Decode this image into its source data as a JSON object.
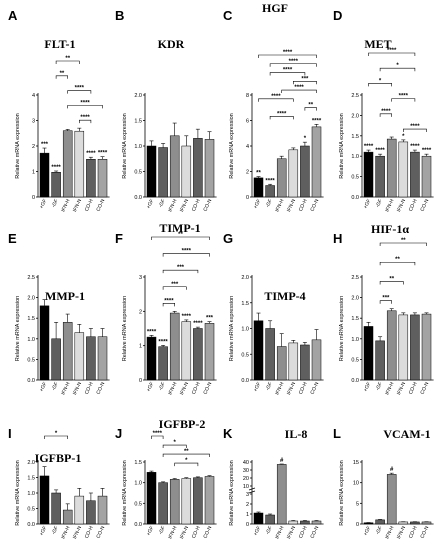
{
  "chart_data": [
    {
      "panel": "A",
      "type": "bar",
      "title": "FLT-1",
      "ylabel": "Relative mRNA expression",
      "ylim": [
        0,
        4
      ],
      "yticks": [
        "0",
        "1",
        "2",
        "3",
        "4"
      ],
      "categories": [
        "+GF",
        "-GF",
        "IFN-H",
        "IFN-N",
        "CO-H",
        "CO-N"
      ],
      "values": [
        1.72,
        0.97,
        2.6,
        2.58,
        1.48,
        1.48
      ],
      "errors": [
        0.2,
        0.05,
        0.05,
        0.12,
        0.08,
        0.1
      ],
      "labels_above": [
        "***",
        "****",
        "",
        "",
        "****",
        "****"
      ],
      "brackets": [
        {
          "from": 1,
          "to": 3,
          "label": "**"
        },
        {
          "from": 1,
          "to": 2,
          "label": "**"
        },
        {
          "from": 2,
          "to": 4,
          "label": "****"
        },
        {
          "from": 2,
          "to": 5,
          "label": "****"
        },
        {
          "from": 3,
          "to": 4,
          "label": "****"
        }
      ]
    },
    {
      "panel": "B",
      "type": "bar",
      "title": "KDR",
      "ylabel": "Relative mRNA expression",
      "ylim": [
        0,
        2.0
      ],
      "yticks": [
        "0.0",
        "0.5",
        "1.0",
        "1.5",
        "2.0"
      ],
      "categories": [
        "+GF",
        "-GF",
        "IFN-H",
        "IFN-N",
        "CO-H",
        "CO-N"
      ],
      "values": [
        1.0,
        0.97,
        1.2,
        1.0,
        1.15,
        1.13
      ],
      "errors": [
        0.1,
        0.08,
        0.25,
        0.2,
        0.18,
        0.15
      ],
      "labels_above": [
        "",
        "",
        "",
        "",
        "",
        ""
      ],
      "brackets": []
    },
    {
      "panel": "C",
      "type": "bar",
      "title": "HGF",
      "ylabel": "Relative mRNA expression",
      "ylim": [
        0,
        8
      ],
      "yticks": [
        "0",
        "2",
        "4",
        "6",
        "8"
      ],
      "categories": [
        "+GF",
        "-GF",
        "IFN-H",
        "IFN-N",
        "CO-H",
        "CO-N"
      ],
      "values": [
        1.5,
        0.9,
        3.0,
        3.7,
        4.0,
        5.5
      ],
      "errors": [
        0.1,
        0.1,
        0.2,
        0.15,
        0.3,
        0.2
      ],
      "labels_above": [
        "**",
        "****",
        "",
        "",
        "*",
        "****"
      ],
      "brackets": [
        {
          "from": 0,
          "to": 5,
          "label": "****"
        },
        {
          "from": 1,
          "to": 5,
          "label": "****"
        },
        {
          "from": 1,
          "to": 4,
          "label": "****"
        },
        {
          "from": 3,
          "to": 5,
          "label": "***"
        },
        {
          "from": 2,
          "to": 5,
          "label": "****"
        },
        {
          "from": 0,
          "to": 3,
          "label": "****"
        },
        {
          "from": 4,
          "to": 5,
          "label": "**"
        },
        {
          "from": 1,
          "to": 3,
          "label": "****"
        }
      ]
    },
    {
      "panel": "D",
      "type": "bar",
      "title": "MET",
      "ylabel": "Relative mRNA expression",
      "ylim": [
        0,
        2.5
      ],
      "yticks": [
        "0.0",
        "0.5",
        "1.0",
        "1.5",
        "2.0",
        "2.5"
      ],
      "categories": [
        "+GF",
        "-GF",
        "IFN-H",
        "IFN-N",
        "CO-H",
        "CO-N"
      ],
      "values": [
        1.1,
        1.0,
        1.42,
        1.35,
        1.1,
        1.0
      ],
      "errors": [
        0.05,
        0.05,
        0.05,
        0.05,
        0.05,
        0.05
      ],
      "labels_above": [
        "****",
        "****",
        "",
        "*",
        "****",
        "****"
      ],
      "brackets": [
        {
          "from": 0,
          "to": 4,
          "label": "****"
        },
        {
          "from": 1,
          "to": 4,
          "label": "*"
        },
        {
          "from": 0,
          "to": 2,
          "label": "*"
        },
        {
          "from": 2,
          "to": 4,
          "label": "****"
        },
        {
          "from": 1,
          "to": 2,
          "label": "****"
        },
        {
          "from": 3,
          "to": 5,
          "label": "****"
        }
      ]
    },
    {
      "panel": "E",
      "type": "bar",
      "title": "MMP-1",
      "ylabel": "Relative mRNA expression",
      "ylim": [
        0,
        2.5
      ],
      "yticks": [
        "0.0",
        "0.5",
        "1.0",
        "1.5",
        "2.0",
        "2.5"
      ],
      "categories": [
        "+GF",
        "-GF",
        "IFN-H",
        "IFN-N",
        "CO-H",
        "CO-N"
      ],
      "values": [
        1.8,
        1.0,
        1.4,
        1.15,
        1.05,
        1.05
      ],
      "errors": [
        0.15,
        0.4,
        0.2,
        0.2,
        0.2,
        0.2
      ],
      "labels_above": [
        "",
        "",
        "",
        "",
        "",
        ""
      ],
      "brackets": []
    },
    {
      "panel": "F",
      "type": "bar",
      "title": "TIMP-1",
      "ylabel": "Relative mRNA expression",
      "ylim": [
        0,
        3
      ],
      "yticks": [
        "0",
        "1",
        "2",
        "3"
      ],
      "categories": [
        "+GF",
        "-GF",
        "IFN-H",
        "IFN-N",
        "CO-H",
        "CO-N"
      ],
      "values": [
        1.25,
        0.97,
        1.95,
        1.7,
        1.5,
        1.65
      ],
      "errors": [
        0.05,
        0.04,
        0.05,
        0.05,
        0.04,
        0.05
      ],
      "labels_above": [
        "****",
        "****",
        "",
        "****",
        "****",
        "***"
      ],
      "brackets": [
        {
          "from": 0,
          "to": 5,
          "label": "**"
        },
        {
          "from": 1,
          "to": 5,
          "label": "****"
        },
        {
          "from": 1,
          "to": 4,
          "label": "***"
        },
        {
          "from": 1,
          "to": 3,
          "label": "***"
        },
        {
          "from": 1,
          "to": 2,
          "label": "****"
        }
      ]
    },
    {
      "panel": "G",
      "type": "bar",
      "title": "TIMP-4",
      "ylabel": "Relative mRNA expression",
      "ylim": [
        0,
        2.0
      ],
      "yticks": [
        "0.0",
        "0.5",
        "1.0",
        "1.5",
        "2.0"
      ],
      "categories": [
        "+GF",
        "-GF",
        "IFN-H",
        "IFN-N",
        "CO-H",
        "CO-N"
      ],
      "values": [
        1.15,
        1.0,
        0.65,
        0.72,
        0.68,
        0.78
      ],
      "errors": [
        0.15,
        0.15,
        0.25,
        0.05,
        0.05,
        0.2
      ],
      "labels_above": [
        "",
        "",
        "",
        "",
        "",
        ""
      ],
      "brackets": []
    },
    {
      "panel": "H",
      "type": "bar",
      "title": "HIF-1α",
      "ylabel": "Relative mRNA expression",
      "ylim": [
        0,
        2.5
      ],
      "yticks": [
        "0.0",
        "0.5",
        "1.0",
        "1.5",
        "2.0",
        "2.5"
      ],
      "categories": [
        "+GF",
        "-GF",
        "IFN-H",
        "IFN-N",
        "CO-H",
        "CO-N"
      ],
      "values": [
        1.3,
        0.95,
        1.68,
        1.58,
        1.58,
        1.6
      ],
      "errors": [
        0.1,
        0.1,
        0.05,
        0.05,
        0.05,
        0.03
      ],
      "labels_above": [
        "",
        "",
        "",
        "",
        "",
        ""
      ],
      "brackets": [
        {
          "from": 1,
          "to": 5,
          "label": "**"
        },
        {
          "from": 1,
          "to": 4,
          "label": "**"
        },
        {
          "from": 1,
          "to": 3,
          "label": "**"
        },
        {
          "from": 1,
          "to": 2,
          "label": "***"
        }
      ]
    },
    {
      "panel": "I",
      "type": "bar",
      "title": "IGFBP-1",
      "ylabel": "Relative mRNA expression",
      "ylim": [
        0,
        2.0
      ],
      "yticks": [
        "0.0",
        "0.5",
        "1.0",
        "1.5",
        "2.0"
      ],
      "categories": [
        "+GF",
        "-GF",
        "IFN-H",
        "IFN-N",
        "CO-H",
        "CO-N"
      ],
      "values": [
        1.55,
        1.0,
        0.45,
        0.9,
        0.75,
        0.9
      ],
      "errors": [
        0.3,
        0.1,
        0.2,
        0.25,
        0.25,
        0.25
      ],
      "labels_above": [
        "",
        "",
        "",
        "",
        "",
        ""
      ],
      "brackets": [
        {
          "from": 0,
          "to": 2,
          "label": "*"
        }
      ]
    },
    {
      "panel": "J",
      "type": "bar",
      "title": "IGFBP-2",
      "ylabel": "Relative mRNA expression",
      "ylim": [
        0,
        1.5
      ],
      "yticks": [
        "0.0",
        "0.5",
        "1.0",
        "1.5"
      ],
      "categories": [
        "+GF",
        "-GF",
        "IFN-H",
        "IFN-N",
        "CO-H",
        "CO-N"
      ],
      "values": [
        1.25,
        1.0,
        1.08,
        1.1,
        1.12,
        1.15
      ],
      "errors": [
        0.03,
        0.02,
        0.02,
        0.02,
        0.02,
        0.02
      ],
      "labels_above": [
        "",
        "",
        "",
        "",
        "",
        ""
      ],
      "brackets": [
        {
          "from": 0,
          "to": 1,
          "label": "****"
        },
        {
          "from": 1,
          "to": 3,
          "label": "*"
        },
        {
          "from": 1,
          "to": 5,
          "label": "**"
        },
        {
          "from": 2,
          "to": 4,
          "label": "*"
        }
      ]
    },
    {
      "panel": "K",
      "type": "bar",
      "title": "IL-8",
      "ylabel": "Relative mRNA expression",
      "broken_axis": true,
      "ylim": [
        0,
        40
      ],
      "yticks": [
        "0",
        "1",
        "2",
        "3",
        "10",
        "20",
        "30",
        "40"
      ],
      "categories": [
        "+GF",
        "-GF",
        "IFN-H",
        "IFN-N",
        "CO-H",
        "CO-N"
      ],
      "values": [
        1.1,
        0.9,
        37,
        0.3,
        0.3,
        0.3
      ],
      "errors": [
        0.1,
        0.1,
        0.5,
        0.05,
        0.05,
        0.05
      ],
      "labels_above": [
        "",
        "",
        "#",
        "",
        "",
        ""
      ],
      "brackets": []
    },
    {
      "panel": "L",
      "type": "bar",
      "title": "VCAM-1",
      "ylabel": "Relative mRNA expression",
      "ylim": [
        0,
        15
      ],
      "yticks": [
        "0",
        "5",
        "10",
        "15"
      ],
      "categories": [
        "+GF",
        "-GF",
        "IFN-H",
        "IFN-N",
        "CO-H",
        "CO-N"
      ],
      "values": [
        0.3,
        1.0,
        12,
        0.5,
        0.5,
        0.5
      ],
      "errors": [
        0.05,
        0.1,
        0.3,
        0.05,
        0.05,
        0.05
      ],
      "labels_above": [
        "",
        "",
        "#",
        "",
        "",
        ""
      ],
      "brackets": []
    }
  ]
}
